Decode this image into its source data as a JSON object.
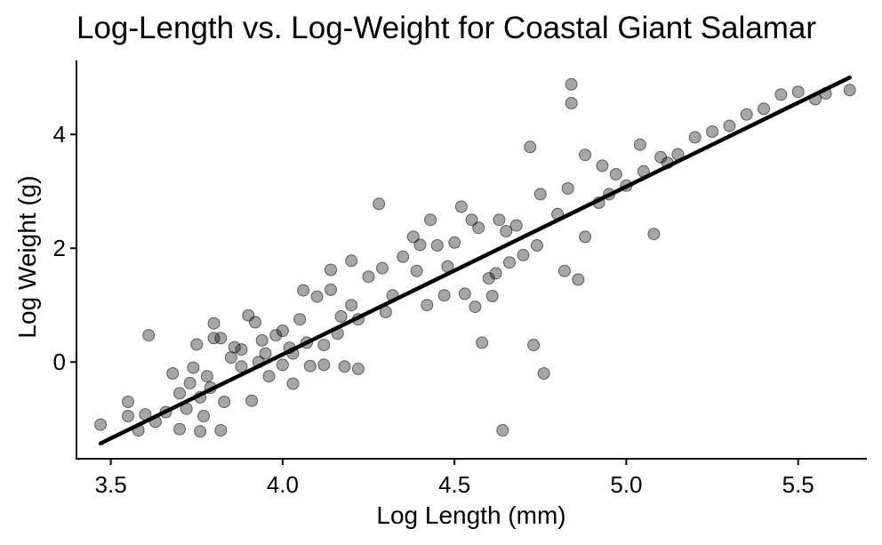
{
  "chart_data": {
    "type": "scatter",
    "title": "Log-Length vs. Log-Weight for Coastal Giant Salamar",
    "xlabel": "Log Length (mm)",
    "ylabel": "Log Weight (g)",
    "xlim": [
      3.4,
      5.7
    ],
    "ylim": [
      -1.7,
      5.3
    ],
    "x_ticks": [
      3.5,
      4.0,
      4.5,
      5.0,
      5.5
    ],
    "x_tick_labels": [
      "3.5",
      "4.0",
      "4.5",
      "5.0",
      "5.5"
    ],
    "y_ticks": [
      0,
      2,
      4
    ],
    "y_tick_labels": [
      "0",
      "2",
      "4"
    ],
    "grid": false,
    "legend": "none",
    "point_color": "#000000",
    "point_opacity": 0.35,
    "trend_line": {
      "x": [
        3.47,
        5.65
      ],
      "y": [
        -1.43,
        5.0
      ],
      "color": "#000000"
    },
    "series": [
      {
        "points": [
          [
            3.47,
            -1.1
          ],
          [
            3.55,
            -0.7
          ],
          [
            3.55,
            -0.95
          ],
          [
            3.58,
            -1.2
          ],
          [
            3.6,
            -0.92
          ],
          [
            3.61,
            0.47
          ],
          [
            3.63,
            -1.05
          ],
          [
            3.66,
            -0.88
          ],
          [
            3.68,
            -0.2
          ],
          [
            3.7,
            -1.18
          ],
          [
            3.7,
            -0.55
          ],
          [
            3.72,
            -0.82
          ],
          [
            3.73,
            -0.37
          ],
          [
            3.74,
            -0.1
          ],
          [
            3.75,
            0.31
          ],
          [
            3.76,
            -1.22
          ],
          [
            3.76,
            -0.62
          ],
          [
            3.77,
            -0.95
          ],
          [
            3.78,
            -0.25
          ],
          [
            3.79,
            -0.45
          ],
          [
            3.8,
            0.68
          ],
          [
            3.8,
            0.42
          ],
          [
            3.82,
            -1.2
          ],
          [
            3.82,
            0.42
          ],
          [
            3.83,
            -0.7
          ],
          [
            3.85,
            0.08
          ],
          [
            3.86,
            0.26
          ],
          [
            3.88,
            -0.08
          ],
          [
            3.88,
            0.22
          ],
          [
            3.9,
            0.82
          ],
          [
            3.91,
            -0.68
          ],
          [
            3.92,
            0.7
          ],
          [
            3.93,
            0.0
          ],
          [
            3.94,
            0.38
          ],
          [
            3.95,
            0.15
          ],
          [
            3.96,
            -0.25
          ],
          [
            3.98,
            0.47
          ],
          [
            4.0,
            -0.05
          ],
          [
            4.0,
            0.55
          ],
          [
            4.02,
            0.25
          ],
          [
            4.03,
            0.15
          ],
          [
            4.03,
            -0.38
          ],
          [
            4.05,
            0.75
          ],
          [
            4.06,
            1.26
          ],
          [
            4.07,
            0.34
          ],
          [
            4.08,
            -0.07
          ],
          [
            4.1,
            1.15
          ],
          [
            4.12,
            0.3
          ],
          [
            4.12,
            -0.05
          ],
          [
            4.14,
            1.62
          ],
          [
            4.14,
            1.27
          ],
          [
            4.16,
            0.5
          ],
          [
            4.17,
            0.8
          ],
          [
            4.18,
            -0.08
          ],
          [
            4.2,
            1.0
          ],
          [
            4.2,
            1.78
          ],
          [
            4.22,
            0.75
          ],
          [
            4.22,
            -0.12
          ],
          [
            4.25,
            1.5
          ],
          [
            4.28,
            2.78
          ],
          [
            4.29,
            1.65
          ],
          [
            4.3,
            0.88
          ],
          [
            4.32,
            1.17
          ],
          [
            4.35,
            1.85
          ],
          [
            4.38,
            2.2
          ],
          [
            4.39,
            1.6
          ],
          [
            4.4,
            2.06
          ],
          [
            4.42,
            1.0
          ],
          [
            4.43,
            2.5
          ],
          [
            4.45,
            2.05
          ],
          [
            4.47,
            1.17
          ],
          [
            4.48,
            1.68
          ],
          [
            4.5,
            2.1
          ],
          [
            4.52,
            2.73
          ],
          [
            4.53,
            1.2
          ],
          [
            4.55,
            2.5
          ],
          [
            4.56,
            0.97
          ],
          [
            4.57,
            2.36
          ],
          [
            4.58,
            0.34
          ],
          [
            4.6,
            1.47
          ],
          [
            4.61,
            1.16
          ],
          [
            4.62,
            1.56
          ],
          [
            4.63,
            2.5
          ],
          [
            4.64,
            -1.2
          ],
          [
            4.65,
            2.3
          ],
          [
            4.66,
            1.75
          ],
          [
            4.68,
            2.4
          ],
          [
            4.7,
            1.88
          ],
          [
            4.72,
            3.78
          ],
          [
            4.73,
            0.3
          ],
          [
            4.74,
            2.05
          ],
          [
            4.75,
            2.95
          ],
          [
            4.76,
            -0.2
          ],
          [
            4.8,
            2.6
          ],
          [
            4.82,
            1.6
          ],
          [
            4.83,
            3.05
          ],
          [
            4.84,
            4.88
          ],
          [
            4.84,
            4.55
          ],
          [
            4.86,
            1.45
          ],
          [
            4.88,
            3.64
          ],
          [
            4.88,
            2.2
          ],
          [
            4.92,
            2.8
          ],
          [
            4.93,
            3.45
          ],
          [
            4.95,
            2.95
          ],
          [
            4.97,
            3.3
          ],
          [
            5.0,
            3.1
          ],
          [
            5.04,
            3.82
          ],
          [
            5.05,
            3.35
          ],
          [
            5.08,
            2.25
          ],
          [
            5.1,
            3.6
          ],
          [
            5.12,
            3.5
          ],
          [
            5.15,
            3.65
          ],
          [
            5.2,
            3.95
          ],
          [
            5.25,
            4.05
          ],
          [
            5.3,
            4.15
          ],
          [
            5.35,
            4.35
          ],
          [
            5.4,
            4.45
          ],
          [
            5.45,
            4.7
          ],
          [
            5.5,
            4.75
          ],
          [
            5.55,
            4.62
          ],
          [
            5.58,
            4.72
          ],
          [
            5.65,
            4.78
          ]
        ]
      }
    ]
  }
}
